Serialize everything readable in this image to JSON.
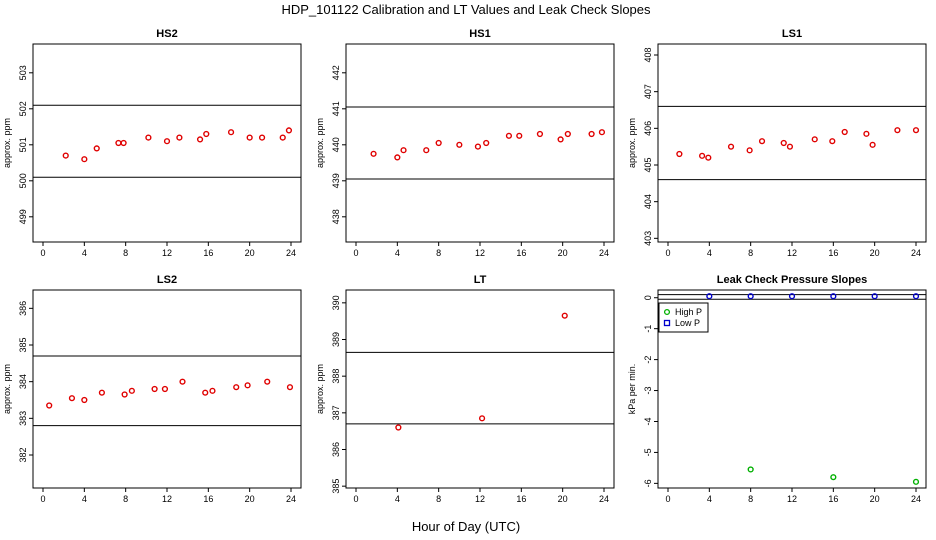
{
  "page_title": "HDP_101122  Calibration and LT Values and Leak Check Slopes",
  "x_axis_title": "Hour of Day (UTC)",
  "colors": {
    "cal_point": "#e00000",
    "high_p": "#00b000",
    "low_p": "#0000cc",
    "line": "#000000"
  },
  "chart_data": [
    {
      "type": "scatter",
      "title": "HS2",
      "ylabel": "approx. ppm",
      "xlim": [
        0,
        24
      ],
      "ylim": [
        498.3,
        503.8
      ],
      "xticks": [
        0,
        4,
        8,
        12,
        16,
        20,
        24
      ],
      "yticks": [
        499,
        500,
        501,
        502,
        503
      ],
      "hlines": [
        500.1,
        502.1
      ],
      "points": [
        [
          2.2,
          500.7
        ],
        [
          4,
          500.6
        ],
        [
          5.2,
          500.9
        ],
        [
          7.3,
          501.05
        ],
        [
          7.8,
          501.05
        ],
        [
          10.2,
          501.2
        ],
        [
          12,
          501.1
        ],
        [
          13.2,
          501.2
        ],
        [
          15.2,
          501.15
        ],
        [
          15.8,
          501.3
        ],
        [
          18.2,
          501.35
        ],
        [
          20,
          501.2
        ],
        [
          21.2,
          501.2
        ],
        [
          23.2,
          501.2
        ],
        [
          23.8,
          501.4
        ]
      ]
    },
    {
      "type": "scatter",
      "title": "HS1",
      "ylabel": "approx. ppm",
      "xlim": [
        0,
        24
      ],
      "ylim": [
        437.3,
        442.8
      ],
      "xticks": [
        0,
        4,
        8,
        12,
        16,
        20,
        24
      ],
      "yticks": [
        438,
        439,
        440,
        441,
        442
      ],
      "hlines": [
        439.05,
        441.05
      ],
      "points": [
        [
          1.7,
          439.75
        ],
        [
          4,
          439.65
        ],
        [
          4.6,
          439.85
        ],
        [
          6.8,
          439.85
        ],
        [
          8,
          440.05
        ],
        [
          10,
          440.0
        ],
        [
          11.8,
          439.95
        ],
        [
          12.6,
          440.05
        ],
        [
          14.8,
          440.25
        ],
        [
          15.8,
          440.25
        ],
        [
          17.8,
          440.3
        ],
        [
          19.8,
          440.15
        ],
        [
          20.5,
          440.3
        ],
        [
          22.8,
          440.3
        ],
        [
          23.8,
          440.35
        ]
      ]
    },
    {
      "type": "scatter",
      "title": "LS1",
      "ylabel": "approx. ppm",
      "xlim": [
        0,
        24
      ],
      "ylim": [
        402.9,
        408.3
      ],
      "xticks": [
        0,
        4,
        8,
        12,
        16,
        20,
        24
      ],
      "yticks": [
        403,
        404,
        405,
        406,
        407,
        408
      ],
      "hlines": [
        404.6,
        406.6
      ],
      "points": [
        [
          1.1,
          405.3
        ],
        [
          3.3,
          405.25
        ],
        [
          3.9,
          405.2
        ],
        [
          6.1,
          405.5
        ],
        [
          7.9,
          405.4
        ],
        [
          9.1,
          405.65
        ],
        [
          11.2,
          405.6
        ],
        [
          11.8,
          405.5
        ],
        [
          14.2,
          405.7
        ],
        [
          15.9,
          405.65
        ],
        [
          17.1,
          405.9
        ],
        [
          19.2,
          405.85
        ],
        [
          19.8,
          405.55
        ],
        [
          22.2,
          405.95
        ],
        [
          24,
          405.95
        ]
      ]
    },
    {
      "type": "scatter",
      "title": "LS2",
      "ylabel": "approx. ppm",
      "xlim": [
        0,
        24
      ],
      "ylim": [
        381.1,
        386.5
      ],
      "xticks": [
        0,
        4,
        8,
        12,
        16,
        20,
        24
      ],
      "yticks": [
        382,
        383,
        384,
        385,
        386
      ],
      "hlines": [
        382.8,
        384.7
      ],
      "points": [
        [
          0.6,
          383.35
        ],
        [
          2.8,
          383.55
        ],
        [
          4,
          383.5
        ],
        [
          5.7,
          383.7
        ],
        [
          7.9,
          383.65
        ],
        [
          8.6,
          383.75
        ],
        [
          10.8,
          383.8
        ],
        [
          11.8,
          383.8
        ],
        [
          13.5,
          384.0
        ],
        [
          15.7,
          383.7
        ],
        [
          16.4,
          383.75
        ],
        [
          18.7,
          383.85
        ],
        [
          19.8,
          383.9
        ],
        [
          21.7,
          384.0
        ],
        [
          23.9,
          383.85
        ]
      ]
    },
    {
      "type": "scatter",
      "title": "LT",
      "ylabel": "approx. ppm",
      "xlim": [
        0,
        24
      ],
      "ylim": [
        384.95,
        390.35
      ],
      "xticks": [
        0,
        4,
        8,
        12,
        16,
        20,
        24
      ],
      "yticks": [
        385,
        386,
        387,
        388,
        389,
        390
      ],
      "hlines": [
        386.7,
        388.65
      ],
      "points": [
        [
          4.1,
          386.6
        ],
        [
          12.2,
          386.85
        ],
        [
          20.2,
          389.65
        ]
      ]
    },
    {
      "type": "scatter",
      "title": "Leak Check Pressure Slopes",
      "ylabel": "kPa per min.",
      "xlim": [
        0,
        24
      ],
      "ylim": [
        -6.15,
        0.25
      ],
      "xticks": [
        0,
        4,
        8,
        12,
        16,
        20,
        24
      ],
      "yticks": [
        0,
        -1,
        -2,
        -3,
        -4,
        -5,
        -6
      ],
      "hlines": [
        0.1,
        -0.05
      ],
      "legend": {
        "position": "top-left",
        "entries": [
          "High P",
          "Low P"
        ]
      },
      "series": [
        {
          "name": "High P",
          "points": [
            [
              8,
              -5.55
            ],
            [
              16,
              -5.8
            ],
            [
              24,
              -5.95
            ]
          ]
        },
        {
          "name": "Low P",
          "points": [
            [
              4,
              0.05
            ],
            [
              8,
              0.05
            ],
            [
              12,
              0.05
            ],
            [
              16,
              0.05
            ],
            [
              20,
              0.05
            ],
            [
              24,
              0.05
            ]
          ]
        }
      ]
    }
  ]
}
